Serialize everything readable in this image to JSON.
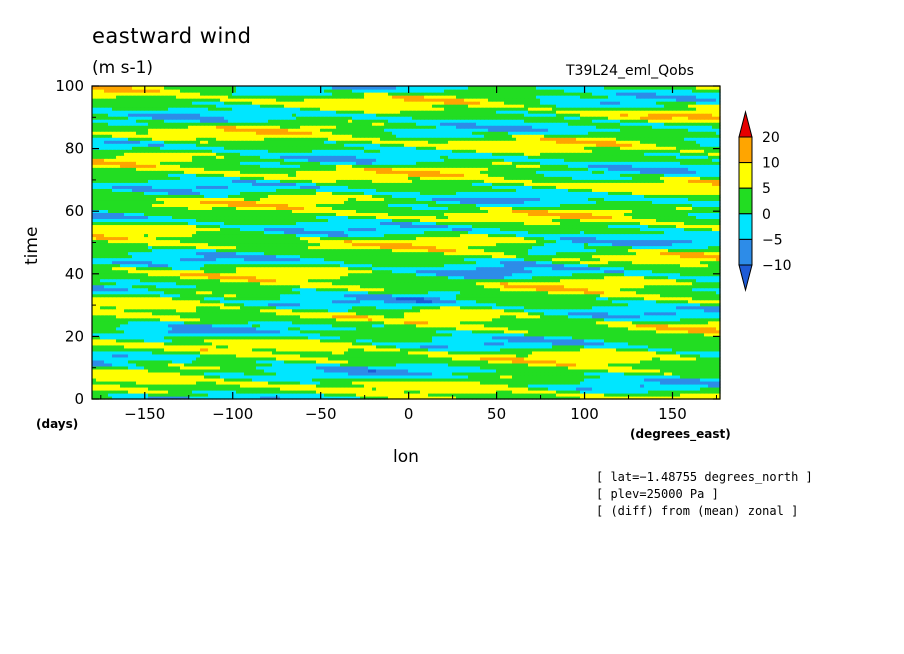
{
  "chart_data": {
    "type": "heatmap",
    "title": "eastward wind",
    "units": "(m s-1)",
    "run_label": "T39L24_eml_Qobs",
    "xlabel": "lon",
    "ylabel": "time",
    "x_unit_label": "(degrees_east)",
    "y_unit_label": "(days)",
    "xlim": [
      -180,
      177
    ],
    "ylim": [
      0,
      100
    ],
    "x_ticks": [
      -150,
      -100,
      -50,
      0,
      50,
      100,
      150
    ],
    "y_ticks": [
      0,
      20,
      40,
      60,
      80,
      100
    ],
    "x_tick_labels": [
      "−150",
      "−100",
      "−50",
      "0",
      "50",
      "100",
      "150"
    ],
    "y_tick_labels": [
      "0",
      "20",
      "40",
      "60",
      "80",
      "100"
    ],
    "colorbar": {
      "levels": [
        -10,
        -5,
        0,
        5,
        10,
        20
      ],
      "labels": [
        "−10",
        "−5",
        "0",
        "5",
        "10",
        "20"
      ],
      "colors": [
        "#1e5bd6",
        "#2d8ce8",
        "#00e6ff",
        "#22dd22",
        "#ffff00",
        "#ffa500",
        "#e60000"
      ]
    },
    "notes": [
      "[ lat=−1.48755 degrees_north ]",
      "[ plev=25000 Pa ]",
      "[ (diff) from (mean) zonal ]"
    ],
    "field_description": "filled contours of eastward wind anomaly over longitude and time; values mostly between -10 and 10 m/s, dominated by 0 to 5 (green) and -5 to 0 (cyan)"
  }
}
